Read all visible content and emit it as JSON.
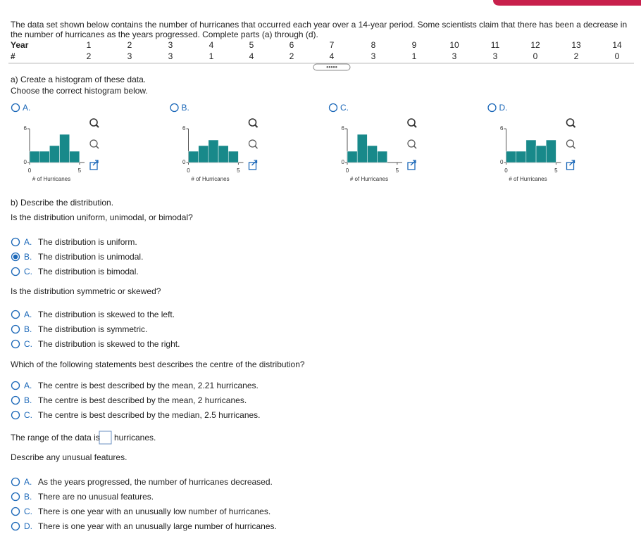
{
  "intro": "The data set shown below contains the number of hurricanes that occurred each year over a 14-year period. Some scientists claim that there has been a decrease in the number of hurricanes as the years progressed. Complete parts (a) through (d).",
  "table": {
    "year_label": "Year",
    "count_label": "#",
    "years": [
      1,
      2,
      3,
      4,
      5,
      6,
      7,
      8,
      9,
      10,
      11,
      12,
      13,
      14
    ],
    "counts": [
      2,
      3,
      3,
      1,
      4,
      2,
      4,
      3,
      1,
      3,
      3,
      0,
      2,
      0
    ]
  },
  "part_a": {
    "prompt": "a) Create a histogram of these data.",
    "instruction": "Choose the correct histogram below.",
    "options": [
      {
        "letter": "A.",
        "chart": {
          "type": "histogram",
          "bins": [
            0,
            1,
            2,
            3,
            4,
            5
          ],
          "values": [
            2,
            2,
            3,
            5,
            2
          ],
          "xlim": [
            0,
            5.5
          ],
          "ylim": [
            0,
            6
          ],
          "xticks": [
            0,
            5
          ],
          "yticks": [
            0,
            6
          ],
          "xlabel": "# of Hurricanes",
          "color": "#18898a"
        }
      },
      {
        "letter": "B.",
        "chart": {
          "type": "histogram",
          "bins": [
            0,
            1,
            2,
            3,
            4,
            5
          ],
          "values": [
            2,
            3,
            4,
            3,
            2
          ],
          "xlim": [
            0,
            5.5
          ],
          "ylim": [
            0,
            6
          ],
          "xticks": [
            0,
            5
          ],
          "yticks": [
            0,
            6
          ],
          "xlabel": "# of Hurricanes",
          "color": "#18898a"
        }
      },
      {
        "letter": "C.",
        "chart": {
          "type": "histogram",
          "bins": [
            0,
            1,
            2,
            3,
            4
          ],
          "values": [
            2,
            5,
            3,
            2
          ],
          "xlim": [
            0,
            5.5
          ],
          "ylim": [
            0,
            6
          ],
          "xticks": [
            0,
            5
          ],
          "yticks": [
            0,
            6
          ],
          "xlabel": "# of Hurricanes",
          "color": "#18898a"
        }
      },
      {
        "letter": "D.",
        "chart": {
          "type": "histogram",
          "bins": [
            0,
            1,
            2,
            3,
            4,
            5
          ],
          "values": [
            2,
            2,
            4,
            3,
            4
          ],
          "xlim": [
            0,
            5.5
          ],
          "ylim": [
            0,
            6
          ],
          "xticks": [
            0,
            5
          ],
          "yticks": [
            0,
            6
          ],
          "xlabel": "# of Hurricanes",
          "color": "#18898a"
        }
      }
    ]
  },
  "part_b": {
    "prompt": "b) Describe the distribution.",
    "questions": [
      {
        "text": "Is the distribution uniform, unimodal, or bimodal?",
        "selected": 1,
        "options": [
          {
            "letter": "A.",
            "text": "The distribution is uniform."
          },
          {
            "letter": "B.",
            "text": "The distribution is unimodal."
          },
          {
            "letter": "C.",
            "text": "The distribution is bimodal."
          }
        ]
      },
      {
        "text": "Is the distribution symmetric or skewed?",
        "options": [
          {
            "letter": "A.",
            "text": "The distribution is skewed to the left."
          },
          {
            "letter": "B.",
            "text": "The distribution is symmetric."
          },
          {
            "letter": "C.",
            "text": "The distribution is skewed to the right."
          }
        ]
      },
      {
        "text": "Which of the following statements best describes the centre of the distribution?",
        "options": [
          {
            "letter": "A.",
            "text": "The centre is best described by the mean, 2.21 hurricanes."
          },
          {
            "letter": "B.",
            "text": "The centre is best described by the mean, 2 hurricanes."
          },
          {
            "letter": "C.",
            "text": "The centre is best described by the median, 2.5 hurricanes."
          }
        ]
      }
    ],
    "range_prompt": "The range of the data is",
    "range_unit": "hurricanes.",
    "features_prompt": "Describe any unusual features.",
    "features_options": [
      {
        "letter": "A.",
        "text": "As the years progressed, the number of hurricanes decreased."
      },
      {
        "letter": "B.",
        "text": "There are no unusual features."
      },
      {
        "letter": "C.",
        "text": "There is one year with an unusually low number of hurricanes."
      },
      {
        "letter": "D.",
        "text": "There is one year with an unusually large number of hurricanes."
      }
    ]
  }
}
